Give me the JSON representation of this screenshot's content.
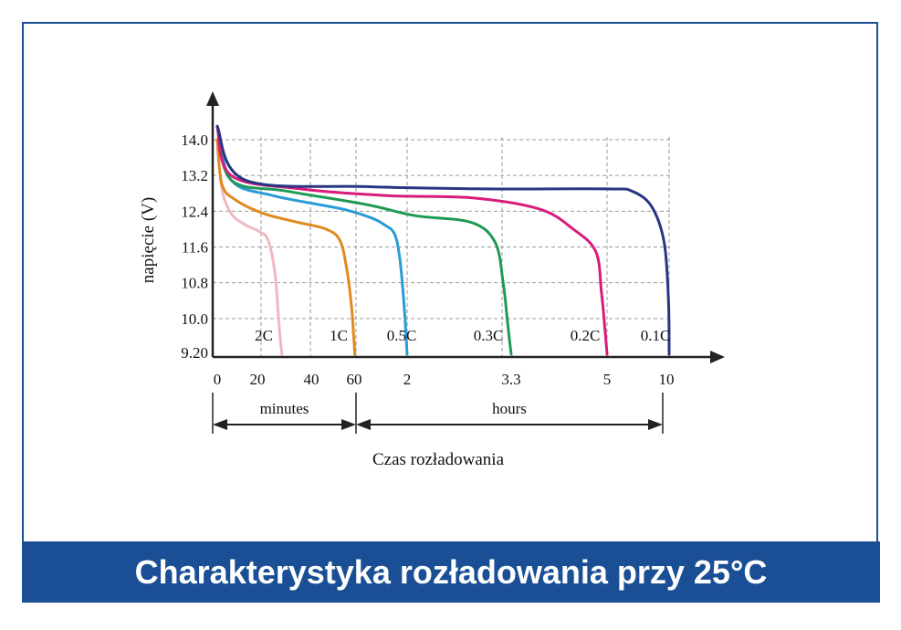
{
  "banner": {
    "title": "Charakterystyka rozładowania przy 25°C"
  },
  "colors": {
    "frame": "#1a4f96",
    "series": {
      "2C": "#f0b8bf",
      "1C": "#e08a1e",
      "0.5C": "#2a9bd6",
      "0.3C": "#1f9a55",
      "0.2C": "#d81b7c",
      "0.1C": "#283583"
    }
  },
  "chart_data": {
    "type": "line",
    "title": "",
    "ylabel": "napięcie (V)",
    "xlabel": "Czas rozładowania",
    "y_ticks": [
      "14.0",
      "13.2",
      "12.4",
      "11.6",
      "10.8",
      "10.0",
      "9.20"
    ],
    "ylim": [
      9.2,
      14.8
    ],
    "x_ticks": [
      "0",
      "20",
      "40",
      "60",
      "2",
      "3.3",
      "5",
      "10"
    ],
    "x_segments": [
      {
        "label": "minutes",
        "from": "0",
        "to": "60"
      },
      {
        "label": "hours",
        "from": "60",
        "to": "10"
      }
    ],
    "grid": true,
    "series": [
      {
        "name": "2C",
        "x": [
          0,
          2,
          6,
          12,
          18,
          22,
          25,
          26.5,
          27.5,
          28
        ],
        "y": [
          14.0,
          12.9,
          12.35,
          12.1,
          11.95,
          11.75,
          11.0,
          10.0,
          9.4,
          9.2
        ]
      },
      {
        "name": "1C",
        "x": [
          0,
          2,
          8,
          20,
          35,
          47,
          53,
          56,
          58,
          59,
          59.5
        ],
        "y": [
          14.0,
          13.0,
          12.65,
          12.35,
          12.15,
          12.0,
          11.75,
          11.1,
          10.3,
          9.6,
          9.2
        ]
      },
      {
        "name": "0.5C",
        "x": [
          0,
          0.1,
          0.4,
          0.9,
          1.3,
          1.55,
          1.75,
          1.85,
          1.92,
          1.97,
          2.0
        ],
        "y": [
          14.3,
          13.1,
          12.75,
          12.45,
          12.25,
          12.1,
          11.9,
          11.4,
          10.6,
          9.8,
          9.2
        ]
      },
      {
        "name": "0.3C",
        "x": [
          0,
          0.1,
          0.5,
          1.2,
          2.1,
          2.8,
          3.1,
          3.2,
          3.25,
          3.28,
          3.3
        ],
        "y": [
          14.3,
          13.1,
          12.85,
          12.55,
          12.3,
          12.15,
          11.7,
          10.8,
          10.0,
          9.5,
          9.2
        ]
      },
      {
        "name": "0.2C",
        "x": [
          0,
          0.1,
          0.6,
          1.6,
          2.8,
          3.8,
          4.4,
          4.8,
          4.9,
          4.96,
          5.0
        ],
        "y": [
          14.3,
          13.2,
          12.9,
          12.75,
          12.7,
          12.45,
          12.0,
          11.5,
          10.6,
          9.8,
          9.2
        ]
      },
      {
        "name": "0.1C",
        "x": [
          0,
          0.2,
          1.2,
          3.0,
          5.0,
          7.0,
          8.6,
          9.6,
          9.95,
          10.0
        ],
        "y": [
          14.3,
          13.1,
          12.95,
          12.9,
          12.9,
          12.85,
          12.5,
          11.7,
          10.4,
          9.2
        ]
      }
    ]
  }
}
